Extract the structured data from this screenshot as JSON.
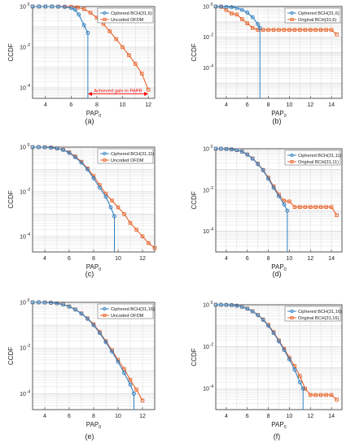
{
  "panel_labels": [
    "(a)",
    "(b)",
    "(c)",
    "(d)",
    "(e)",
    "(f)"
  ],
  "style": {
    "blue": "#2f7fc1",
    "orange": "#e8632b",
    "annotation_red": "#ff0000",
    "grid": "#d9d9d9"
  },
  "chart_data": [
    {
      "type": "line",
      "panel": "(a)",
      "xlabel": "PAP0",
      "ylabel": "CCDF",
      "xlim": [
        3,
        12.5
      ],
      "ylim": [
        3e-05,
        1
      ],
      "yscale": "log",
      "grid": true,
      "legend": "top-right",
      "xticks": [
        4,
        6,
        8,
        10,
        12
      ],
      "yticks": [
        "10^0",
        "10^-2",
        "10^-4"
      ],
      "annotation": {
        "text": "Achieved gain in PAPR",
        "x_from": 7.3,
        "x_to": 12,
        "y": 5e-05
      },
      "series": [
        {
          "name": "Ciphered BCH(31,6)",
          "color": "#2f7fc1",
          "marker": "circle",
          "x": [
            3,
            3.5,
            4,
            4.5,
            5,
            5.5,
            6,
            6.3,
            6.6,
            7,
            7.3
          ],
          "y": [
            1,
            1,
            1,
            1,
            0.98,
            0.95,
            0.85,
            0.7,
            0.4,
            0.12,
            0.05
          ],
          "drop_x": 7.3
        },
        {
          "name": "Uncoded OFDM",
          "color": "#e8632b",
          "marker": "square",
          "x": [
            3,
            3.5,
            4,
            4.5,
            5,
            5.5,
            6,
            6.5,
            7,
            7.5,
            8,
            8.5,
            9,
            9.5,
            10,
            10.5,
            11,
            11.5,
            12
          ],
          "y": [
            1,
            1,
            1,
            1,
            1,
            0.99,
            0.97,
            0.9,
            0.75,
            0.5,
            0.28,
            0.14,
            0.06,
            0.025,
            0.01,
            0.004,
            0.0015,
            0.0005,
            8e-05
          ]
        }
      ]
    },
    {
      "type": "line",
      "panel": "(b)",
      "xlabel": "PAP0",
      "ylabel": "CCDF",
      "xlim": [
        3,
        15
      ],
      "ylim": [
        1e-06,
        1
      ],
      "yscale": "log",
      "grid": true,
      "legend": "top-right",
      "xticks": [
        4,
        6,
        8,
        10,
        12,
        14
      ],
      "yticks": [
        "10^0",
        "10^-2",
        "10^-4"
      ],
      "series": [
        {
          "name": "Ciphered BCH(31,6)",
          "color": "#2f7fc1",
          "marker": "circle",
          "x": [
            3,
            3.5,
            4,
            4.5,
            5,
            5.5,
            6,
            6.5,
            7,
            7.2
          ],
          "y": [
            1,
            1,
            0.95,
            0.9,
            0.8,
            0.6,
            0.4,
            0.2,
            0.07,
            0.04
          ],
          "drop_x": 7.2
        },
        {
          "name": "Original BCH(31,6)",
          "color": "#e8632b",
          "marker": "square",
          "x": [
            3,
            3.5,
            4,
            4.5,
            5,
            5.5,
            6,
            6.5,
            7,
            7.5,
            8,
            8.5,
            9,
            9.5,
            10,
            10.5,
            11,
            11.5,
            12,
            12.5,
            13,
            13.5,
            14,
            14.5
          ],
          "y": [
            1,
            0.95,
            0.6,
            0.35,
            0.3,
            0.15,
            0.08,
            0.04,
            0.03,
            0.03,
            0.03,
            0.03,
            0.03,
            0.03,
            0.03,
            0.03,
            0.03,
            0.03,
            0.03,
            0.03,
            0.03,
            0.03,
            0.03,
            0.015
          ]
        }
      ]
    },
    {
      "type": "line",
      "panel": "(c)",
      "xlabel": "PAP0",
      "ylabel": "CCDF",
      "xlim": [
        3,
        13
      ],
      "ylim": [
        2e-05,
        1
      ],
      "yscale": "log",
      "grid": true,
      "legend": "top-right",
      "xticks": [
        4,
        6,
        8,
        10,
        12
      ],
      "yticks": [
        "10^0",
        "10^-2",
        "10^-4"
      ],
      "series": [
        {
          "name": "Ciphered BCH(31,11)",
          "color": "#2f7fc1",
          "marker": "circle",
          "x": [
            3,
            3.5,
            4,
            4.5,
            5,
            5.5,
            6,
            6.5,
            7,
            7.5,
            8,
            8.5,
            9,
            9.4,
            9.7
          ],
          "y": [
            1,
            1,
            0.98,
            0.94,
            0.87,
            0.75,
            0.55,
            0.35,
            0.2,
            0.1,
            0.04,
            0.015,
            0.006,
            0.002,
            0.0008
          ],
          "drop_x": 9.7
        },
        {
          "name": "Uncoded OFDM",
          "color": "#e8632b",
          "marker": "square",
          "x": [
            3,
            3.5,
            4,
            4.5,
            5,
            5.5,
            6,
            6.5,
            7,
            7.5,
            8,
            8.5,
            9,
            9.5,
            10,
            10.5,
            11,
            11.5,
            12,
            12.5,
            13
          ],
          "y": [
            1,
            1,
            0.99,
            0.95,
            0.88,
            0.77,
            0.58,
            0.38,
            0.22,
            0.11,
            0.05,
            0.02,
            0.008,
            0.004,
            0.002,
            0.001,
            0.0004,
            0.0002,
            0.0001,
            5e-05,
            3e-05
          ]
        }
      ]
    },
    {
      "type": "line",
      "panel": "(d)",
      "xlabel": "PAP0",
      "ylabel": "CCDF",
      "xlim": [
        3,
        15
      ],
      "ylim": [
        1e-05,
        1
      ],
      "yscale": "log",
      "grid": true,
      "legend": "top-right",
      "xticks": [
        4,
        6,
        8,
        10,
        12,
        14
      ],
      "yticks": [
        "10^0",
        "10^-2",
        "10^-4"
      ],
      "series": [
        {
          "name": "Ciphered BCH(31,11)",
          "color": "#2f7fc1",
          "marker": "circle",
          "x": [
            3,
            3.5,
            4,
            4.5,
            5,
            5.5,
            6,
            6.5,
            7,
            7.5,
            8,
            8.5,
            9,
            9.5,
            9.8
          ],
          "y": [
            1,
            1,
            0.97,
            0.93,
            0.85,
            0.72,
            0.52,
            0.33,
            0.18,
            0.09,
            0.035,
            0.013,
            0.005,
            0.002,
            0.001
          ],
          "drop_x": 9.8
        },
        {
          "name": "Original BCH(31,11)",
          "color": "#e8632b",
          "marker": "square",
          "x": [
            3,
            3.5,
            4,
            4.5,
            5,
            5.5,
            6,
            6.5,
            7,
            7.5,
            8,
            8.5,
            9,
            9.5,
            10,
            10.5,
            11,
            11.5,
            12,
            12.5,
            13,
            13.5,
            14,
            14.5
          ],
          "y": [
            1,
            1,
            0.98,
            0.94,
            0.86,
            0.73,
            0.53,
            0.34,
            0.19,
            0.095,
            0.04,
            0.015,
            0.006,
            0.003,
            0.0028,
            0.0015,
            0.0015,
            0.0015,
            0.0015,
            0.0015,
            0.0015,
            0.0015,
            0.0015,
            0.0006
          ]
        }
      ]
    },
    {
      "type": "line",
      "panel": "(e)",
      "xlabel": "PAP0",
      "ylabel": "CCDF",
      "xlim": [
        3,
        13
      ],
      "ylim": [
        2e-05,
        1
      ],
      "yscale": "log",
      "grid": true,
      "legend": "top-right",
      "xticks": [
        4,
        6,
        8,
        10,
        12
      ],
      "yticks": [
        "10^0",
        "10^-2",
        "10^-4"
      ],
      "series": [
        {
          "name": "Ciphered BCH(31,16)",
          "color": "#2f7fc1",
          "marker": "circle",
          "x": [
            3,
            3.5,
            4,
            4.5,
            5,
            5.5,
            6,
            6.5,
            7,
            7.5,
            8,
            8.5,
            9,
            9.5,
            10,
            10.5,
            11,
            11.3
          ],
          "y": [
            1,
            1,
            0.99,
            0.96,
            0.9,
            0.8,
            0.65,
            0.48,
            0.32,
            0.19,
            0.1,
            0.045,
            0.018,
            0.007,
            0.0025,
            0.0008,
            0.00025,
            0.0001
          ],
          "drop_x": 11.3
        },
        {
          "name": "Uncoded OFDM",
          "color": "#e8632b",
          "marker": "square",
          "x": [
            3,
            3.5,
            4,
            4.5,
            5,
            5.5,
            6,
            6.5,
            7,
            7.5,
            8,
            8.5,
            9,
            9.5,
            10,
            10.5,
            11,
            11.5,
            12
          ],
          "y": [
            1,
            1,
            0.99,
            0.96,
            0.91,
            0.81,
            0.66,
            0.49,
            0.33,
            0.2,
            0.11,
            0.05,
            0.02,
            0.008,
            0.003,
            0.0012,
            0.0004,
            0.00015,
            5e-05
          ]
        }
      ]
    },
    {
      "type": "line",
      "panel": "(f)",
      "xlabel": "PAP0",
      "ylabel": "CCDF",
      "xlim": [
        3,
        15
      ],
      "ylim": [
        1e-05,
        1
      ],
      "yscale": "log",
      "grid": true,
      "legend": "top-right",
      "xticks": [
        4,
        6,
        8,
        10,
        12,
        14
      ],
      "yticks": [
        "10^0",
        "10^-2",
        "10^-4"
      ],
      "series": [
        {
          "name": "Ciphered BCH(31,16)",
          "color": "#2f7fc1",
          "marker": "circle",
          "x": [
            3,
            3.5,
            4,
            4.5,
            5,
            5.5,
            6,
            6.5,
            7,
            7.5,
            8,
            8.5,
            9,
            9.5,
            10,
            10.5,
            11,
            11.3
          ],
          "y": [
            1,
            1,
            0.99,
            0.96,
            0.9,
            0.8,
            0.65,
            0.48,
            0.32,
            0.19,
            0.1,
            0.045,
            0.018,
            0.007,
            0.0025,
            0.0008,
            0.0002,
            0.0001
          ],
          "drop_x": 11.3
        },
        {
          "name": "Original BCH(31,16)",
          "color": "#e8632b",
          "marker": "square",
          "x": [
            3,
            3.5,
            4,
            4.5,
            5,
            5.5,
            6,
            6.5,
            7,
            7.5,
            8,
            8.5,
            9,
            9.5,
            10,
            10.5,
            11,
            11.5,
            12,
            12.5,
            13,
            13.5,
            14,
            14.5
          ],
          "y": [
            1,
            1,
            0.99,
            0.96,
            0.91,
            0.81,
            0.66,
            0.49,
            0.33,
            0.2,
            0.11,
            0.05,
            0.02,
            0.008,
            0.003,
            0.0012,
            0.0004,
            0.0001,
            5e-05,
            5e-05,
            5e-05,
            5e-05,
            5e-05,
            3e-05
          ]
        }
      ]
    }
  ]
}
